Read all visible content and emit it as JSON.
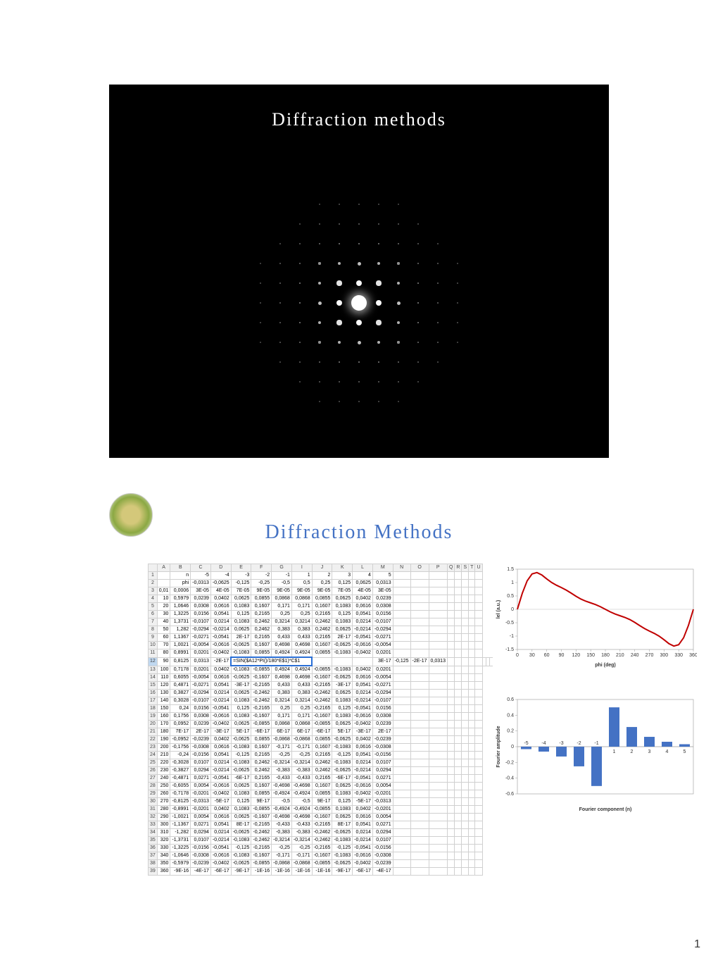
{
  "slide1": {
    "title": "Diffraction methods",
    "pattern": {
      "type": "diffraction",
      "background": "#000000",
      "dot_color": "#ffffff",
      "grid_extent": 6,
      "spacing": 28,
      "center_brightness": 1.0
    }
  },
  "slide2": {
    "title": "Diffraction Methods",
    "title_color": "#4472c4",
    "spreadsheet": {
      "columns": [
        "",
        "A",
        "B",
        "C",
        "D",
        "E",
        "F",
        "G",
        "I",
        "J",
        "K",
        "L",
        "M"
      ],
      "header_row": [
        "n",
        "-5",
        "-4",
        "-3",
        "-2",
        "-1",
        "1",
        "2",
        "3",
        "4",
        "5"
      ],
      "selected_row": 12,
      "formula": "=SIN($A12*PI()/180*E$1)*C$1",
      "rows": [
        {
          "r": 1,
          "cells": [
            "",
            "n",
            "-5",
            "-4",
            "-3",
            "-2",
            "-1",
            "1",
            "2",
            "3",
            "4",
            "5"
          ]
        },
        {
          "r": 2,
          "cells": [
            "",
            "phi",
            "-0,0313",
            "-0,0625",
            "-0,125",
            "-0,25",
            "-0,5",
            "0,5",
            "0,25",
            "0,125",
            "0,0625",
            "0,0313"
          ]
        },
        {
          "r": 3,
          "cells": [
            "0,01",
            "0,0006",
            "3E-05",
            "4E-05",
            "7E-05",
            "9E-05",
            "9E-05",
            "9E-05",
            "9E-05",
            "7E-05",
            "4E-05",
            "3E-05"
          ]
        },
        {
          "r": 4,
          "cells": [
            "10",
            "0,5979",
            "0,0239",
            "0,0402",
            "0,0625",
            "0,0855",
            "0,0868",
            "0,0868",
            "0,0855",
            "0,0625",
            "0,0402",
            "0,0239"
          ]
        },
        {
          "r": 5,
          "cells": [
            "20",
            "1,0646",
            "0,0308",
            "0,0616",
            "0,1083",
            "0,1607",
            "0,171",
            "0,171",
            "0,1607",
            "0,1083",
            "0,0616",
            "0,0308"
          ]
        },
        {
          "r": 6,
          "cells": [
            "30",
            "1,3225",
            "0,0156",
            "0,0541",
            "0,125",
            "0,2165",
            "0,25",
            "0,25",
            "0,2165",
            "0,125",
            "0,0541",
            "0,0156"
          ]
        },
        {
          "r": 7,
          "cells": [
            "40",
            "1,3731",
            "-0,0107",
            "0,0214",
            "0,1083",
            "0,2462",
            "0,3214",
            "0,3214",
            "0,2462",
            "0,1083",
            "0,0214",
            "-0,0107"
          ]
        },
        {
          "r": 8,
          "cells": [
            "50",
            "1,282",
            "-0,0294",
            "-0,0214",
            "0,0625",
            "0,2462",
            "0,383",
            "0,383",
            "0,2462",
            "0,0625",
            "-0,0214",
            "-0,0294"
          ]
        },
        {
          "r": 9,
          "cells": [
            "60",
            "1,1367",
            "-0,0271",
            "-0,0541",
            "2E-17",
            "0,2165",
            "0,433",
            "0,433",
            "0,2165",
            "2E-17",
            "-0,0541",
            "-0,0271"
          ]
        },
        {
          "r": 10,
          "cells": [
            "70",
            "1,0021",
            "-0,0054",
            "-0,0616",
            "-0,0625",
            "0,1607",
            "0,4698",
            "0,4698",
            "0,1607",
            "-0,0625",
            "-0,0616",
            "-0,0054"
          ]
        },
        {
          "r": 11,
          "cells": [
            "80",
            "0,8991",
            "0,0201",
            "-0,0402",
            "-0,1083",
            "0,0855",
            "0,4924",
            "0,4924",
            "0,0855",
            "-0,1083",
            "-0,0402",
            "0,0201"
          ]
        },
        {
          "r": 12,
          "cells": [
            "90",
            "0,8125",
            "0,0313",
            "-2E-17",
            "=SIN($A12*PI()/180*E$1)*C$1",
            "",
            "",
            "",
            "3E-17",
            "-0,125",
            "-2E-17",
            "0,0313"
          ]
        },
        {
          "r": 13,
          "cells": [
            "100",
            "0,7178",
            "0,0201",
            "0,0402",
            "-0,1083",
            "-0,0855",
            "0,4924",
            "0,4924",
            "-0,0855",
            "-0,1083",
            "0,0402",
            "0,0201"
          ]
        },
        {
          "r": 14,
          "cells": [
            "110",
            "0,6055",
            "-0,0054",
            "0,0616",
            "-0,0625",
            "-0,1607",
            "0,4698",
            "0,4698",
            "-0,1607",
            "-0,0625",
            "0,0616",
            "-0,0054"
          ]
        },
        {
          "r": 15,
          "cells": [
            "120",
            "0,4871",
            "-0,0271",
            "0,0541",
            "-3E-17",
            "-0,2165",
            "0,433",
            "0,433",
            "-0,2165",
            "-3E-17",
            "0,0541",
            "-0,0271"
          ]
        },
        {
          "r": 16,
          "cells": [
            "130",
            "0,3827",
            "-0,0294",
            "0,0214",
            "0,0625",
            "-0,2462",
            "0,383",
            "0,383",
            "-0,2462",
            "0,0625",
            "0,0214",
            "-0,0294"
          ]
        },
        {
          "r": 17,
          "cells": [
            "140",
            "0,3028",
            "-0,0107",
            "-0,0214",
            "0,1083",
            "-0,2462",
            "0,3214",
            "0,3214",
            "-0,2462",
            "0,1083",
            "-0,0214",
            "-0,0107"
          ]
        },
        {
          "r": 18,
          "cells": [
            "150",
            "0,24",
            "0,0156",
            "-0,0541",
            "0,125",
            "-0,2165",
            "0,25",
            "0,25",
            "-0,2165",
            "0,125",
            "-0,0541",
            "0,0156"
          ]
        },
        {
          "r": 19,
          "cells": [
            "160",
            "0,1756",
            "0,0308",
            "-0,0616",
            "0,1083",
            "-0,1607",
            "0,171",
            "0,171",
            "-0,1607",
            "0,1083",
            "-0,0616",
            "0,0308"
          ]
        },
        {
          "r": 20,
          "cells": [
            "170",
            "0,0952",
            "0,0239",
            "-0,0402",
            "0,0625",
            "-0,0855",
            "0,0868",
            "0,0868",
            "-0,0855",
            "0,0625",
            "-0,0402",
            "0,0239"
          ]
        },
        {
          "r": 21,
          "cells": [
            "180",
            "7E-17",
            "2E-17",
            "-3E-17",
            "5E-17",
            "-6E-17",
            "6E-17",
            "6E-17",
            "-6E-17",
            "5E-17",
            "-3E-17",
            "2E-17"
          ]
        },
        {
          "r": 22,
          "cells": [
            "190",
            "-0,0952",
            "-0,0239",
            "0,0402",
            "-0,0625",
            "0,0855",
            "-0,0868",
            "-0,0868",
            "0,0855",
            "-0,0625",
            "0,0402",
            "-0,0239"
          ]
        },
        {
          "r": 23,
          "cells": [
            "200",
            "-0,1756",
            "-0,0308",
            "0,0616",
            "-0,1083",
            "0,1607",
            "-0,171",
            "-0,171",
            "0,1607",
            "-0,1083",
            "0,0616",
            "-0,0308"
          ]
        },
        {
          "r": 24,
          "cells": [
            "210",
            "-0,24",
            "-0,0156",
            "0,0541",
            "-0,125",
            "0,2165",
            "-0,25",
            "-0,25",
            "0,2165",
            "-0,125",
            "0,0541",
            "-0,0156"
          ]
        },
        {
          "r": 25,
          "cells": [
            "220",
            "-0,3028",
            "0,0107",
            "0,0214",
            "-0,1083",
            "0,2462",
            "-0,3214",
            "-0,3214",
            "0,2462",
            "-0,1083",
            "0,0214",
            "0,0107"
          ]
        },
        {
          "r": 26,
          "cells": [
            "230",
            "-0,3827",
            "0,0294",
            "-0,0214",
            "-0,0625",
            "0,2462",
            "-0,383",
            "-0,383",
            "0,2462",
            "-0,0625",
            "-0,0214",
            "0,0294"
          ]
        },
        {
          "r": 27,
          "cells": [
            "240",
            "-0,4871",
            "0,0271",
            "-0,0541",
            "-6E-17",
            "0,2165",
            "-0,433",
            "-0,433",
            "0,2165",
            "-6E-17",
            "-0,0541",
            "0,0271"
          ]
        },
        {
          "r": 28,
          "cells": [
            "250",
            "-0,6055",
            "0,0054",
            "-0,0616",
            "0,0625",
            "0,1607",
            "-0,4698",
            "-0,4698",
            "0,1607",
            "0,0625",
            "-0,0616",
            "0,0054"
          ]
        },
        {
          "r": 29,
          "cells": [
            "260",
            "-0,7178",
            "-0,0201",
            "-0,0402",
            "0,1083",
            "0,0855",
            "-0,4924",
            "-0,4924",
            "0,0855",
            "0,1083",
            "-0,0402",
            "-0,0201"
          ]
        },
        {
          "r": 30,
          "cells": [
            "270",
            "-0,8125",
            "-0,0313",
            "-5E-17",
            "0,125",
            "9E-17",
            "-0,5",
            "-0,5",
            "9E-17",
            "0,125",
            "-5E-17",
            "-0,0313"
          ]
        },
        {
          "r": 31,
          "cells": [
            "280",
            "-0,8991",
            "-0,0201",
            "0,0402",
            "0,1083",
            "-0,0855",
            "-0,4924",
            "-0,4924",
            "-0,0855",
            "0,1083",
            "0,0402",
            "-0,0201"
          ]
        },
        {
          "r": 32,
          "cells": [
            "290",
            "-1,0021",
            "0,0054",
            "0,0616",
            "0,0625",
            "-0,1607",
            "-0,4698",
            "-0,4698",
            "-0,1607",
            "0,0625",
            "0,0616",
            "0,0054"
          ]
        },
        {
          "r": 33,
          "cells": [
            "300",
            "-1,1367",
            "0,0271",
            "0,0541",
            "8E-17",
            "-0,2165",
            "-0,433",
            "-0,433",
            "-0,2165",
            "8E-17",
            "0,0541",
            "0,0271"
          ]
        },
        {
          "r": 34,
          "cells": [
            "310",
            "-1,282",
            "0,0294",
            "0,0214",
            "-0,0625",
            "-0,2462",
            "-0,383",
            "-0,383",
            "-0,2462",
            "-0,0625",
            "0,0214",
            "0,0294"
          ]
        },
        {
          "r": 35,
          "cells": [
            "320",
            "-1,3731",
            "0,0107",
            "-0,0214",
            "-0,1083",
            "-0,2462",
            "-0,3214",
            "-0,3214",
            "-0,2462",
            "-0,1083",
            "-0,0214",
            "0,0107"
          ]
        },
        {
          "r": 36,
          "cells": [
            "330",
            "-1,3225",
            "-0,0156",
            "-0,0541",
            "-0,125",
            "-0,2165",
            "-0,25",
            "-0,25",
            "-0,2165",
            "-0,125",
            "-0,0541",
            "-0,0156"
          ]
        },
        {
          "r": 37,
          "cells": [
            "340",
            "-1,0646",
            "-0,0308",
            "-0,0616",
            "-0,1083",
            "-0,1607",
            "-0,171",
            "-0,171",
            "-0,1607",
            "-0,1083",
            "-0,0616",
            "-0,0308"
          ]
        },
        {
          "r": 38,
          "cells": [
            "350",
            "-0,5979",
            "-0,0239",
            "-0,0402",
            "-0,0625",
            "-0,0855",
            "-0,0868",
            "-0,0868",
            "-0,0855",
            "-0,0625",
            "-0,0402",
            "-0,0239"
          ]
        },
        {
          "r": 39,
          "cells": [
            "360",
            "-9E-16",
            "-4E-17",
            "-6E-17",
            "-9E-17",
            "-1E-16",
            "-1E-16",
            "-1E-16",
            "-1E-16",
            "-9E-17",
            "-6E-17",
            "-4E-17"
          ]
        }
      ],
      "extra_cols": [
        "N",
        "O",
        "P",
        "Q",
        "R",
        "S",
        "T",
        "U"
      ]
    },
    "chart1": {
      "type": "line",
      "xlabel": "phi (deg)",
      "ylabel": "lel (a.u.)",
      "xlim": [
        0,
        360
      ],
      "xtick_step": 30,
      "ylim": [
        -1.5,
        1.5
      ],
      "ytick_step": 0.5,
      "line_color": "#c00000",
      "line_width": 2,
      "x": [
        0,
        10,
        20,
        30,
        40,
        50,
        60,
        70,
        80,
        90,
        100,
        110,
        120,
        130,
        140,
        150,
        160,
        170,
        180,
        190,
        200,
        210,
        220,
        230,
        240,
        250,
        260,
        270,
        280,
        290,
        300,
        310,
        320,
        330,
        340,
        350,
        360
      ],
      "y": [
        0.0006,
        0.5979,
        1.0646,
        1.3225,
        1.3731,
        1.282,
        1.1367,
        1.0021,
        0.8991,
        0.8125,
        0.7178,
        0.6055,
        0.4871,
        0.3827,
        0.3028,
        0.24,
        0.1756,
        0.0952,
        0,
        -0.0952,
        -0.1756,
        -0.24,
        -0.3028,
        -0.3827,
        -0.4871,
        -0.6055,
        -0.7178,
        -0.8125,
        -0.8991,
        -1.0021,
        -1.1367,
        -1.282,
        -1.3731,
        -1.3225,
        -1.0646,
        -0.5979,
        0
      ]
    },
    "chart2": {
      "type": "bar",
      "xlabel": "Fourier component (n)",
      "ylabel": "Fourier amplitude",
      "categories": [
        "-5",
        "-4",
        "-3",
        "-2",
        "-1",
        "1",
        "2",
        "3",
        "4",
        "5"
      ],
      "values": [
        -0.0313,
        -0.0625,
        -0.125,
        -0.25,
        -0.5,
        0.5,
        0.25,
        0.125,
        0.0625,
        0.0313
      ],
      "ylim": [
        -0.6,
        0.6
      ],
      "ytick_step": 0.2,
      "bar_color": "#4472c4",
      "bar_width": 0.6
    }
  },
  "page_number": "1"
}
